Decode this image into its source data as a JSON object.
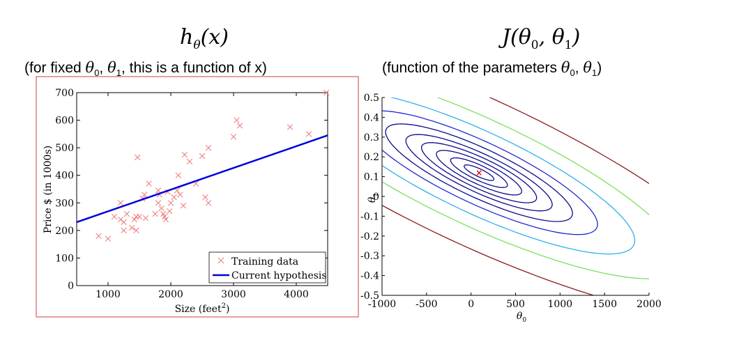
{
  "left_title": {
    "h": "h",
    "sub": "θ",
    "arg": "(x)"
  },
  "left_caption": {
    "pre": "(for fixed ",
    "math": "θ",
    "sub0": "0",
    "sep": ", ",
    "math2": "θ",
    "sub1": "1",
    "post": ", this is a function of x)"
  },
  "right_title": {
    "j": "J",
    "args": "(θ",
    "s0": "0",
    "comma": ", θ",
    "s1": "1",
    "close": ")"
  },
  "right_caption": {
    "pre": "(function of the parameters ",
    "math": "θ",
    "sub0": "0",
    "sep": ", ",
    "math2": "θ",
    "sub1": "1",
    "post": ")"
  },
  "colors": {
    "frame": "#d95f5f",
    "markers": "#f08080",
    "hypothesis": "#0000dd",
    "star": "#ff0000"
  },
  "chart_data": [
    {
      "type": "scatter",
      "xlabel": "Size (feet",
      "xlabel_sup": "2",
      "xlabel_close": ")",
      "ylabel": "Price $ (in 1000s)",
      "xlim": [
        500,
        4500
      ],
      "ylim": [
        0,
        700
      ],
      "xticks": [
        "1000",
        "2000",
        "3000",
        "4000"
      ],
      "xtick_values": [
        1000,
        2000,
        3000,
        4000
      ],
      "yticks": [
        "0",
        "100",
        "200",
        "300",
        "400",
        "500",
        "600",
        "700"
      ],
      "ytick_values": [
        0,
        100,
        200,
        300,
        400,
        500,
        600,
        700
      ],
      "series": [
        {
          "name": "Training data",
          "marker": "x",
          "points": [
            [
              850,
              180
            ],
            [
              1000,
              170
            ],
            [
              1100,
              250
            ],
            [
              1200,
              240
            ],
            [
              1200,
              300
            ],
            [
              1250,
              230
            ],
            [
              1250,
              200
            ],
            [
              1300,
              260
            ],
            [
              1380,
              210
            ],
            [
              1420,
              240
            ],
            [
              1450,
              200
            ],
            [
              1450,
              250
            ],
            [
              1470,
              465
            ],
            [
              1500,
              250
            ],
            [
              1550,
              315
            ],
            [
              1580,
              330
            ],
            [
              1600,
              245
            ],
            [
              1650,
              370
            ],
            [
              1750,
              260
            ],
            [
              1800,
              300
            ],
            [
              1800,
              345
            ],
            [
              1820,
              330
            ],
            [
              1850,
              280
            ],
            [
              1880,
              260
            ],
            [
              1900,
              250
            ],
            [
              1920,
              240
            ],
            [
              1950,
              340
            ],
            [
              1980,
              270
            ],
            [
              2000,
              300
            ],
            [
              2050,
              320
            ],
            [
              2100,
              345
            ],
            [
              2120,
              400
            ],
            [
              2150,
              330
            ],
            [
              2200,
              290
            ],
            [
              2220,
              475
            ],
            [
              2300,
              450
            ],
            [
              2400,
              370
            ],
            [
              2500,
              470
            ],
            [
              2550,
              320
            ],
            [
              2600,
              500
            ],
            [
              2600,
              300
            ],
            [
              3000,
              540
            ],
            [
              3050,
              600
            ],
            [
              3100,
              580
            ],
            [
              3900,
              575
            ],
            [
              4200,
              550
            ],
            [
              4480,
              700
            ]
          ]
        },
        {
          "name": "Current hypothesis",
          "type": "line",
          "x": [
            500,
            4500
          ],
          "y": [
            230,
            545
          ]
        }
      ],
      "legend": "bottom-right"
    },
    {
      "type": "contour",
      "xlabel": "θ",
      "xlabel_sub": "0",
      "ylabel": "θ",
      "ylabel_sub": "1",
      "xlim": [
        -1000,
        2000
      ],
      "ylim": [
        -0.5,
        0.5
      ],
      "xticks": [
        "-1000",
        "-500",
        "0",
        "500",
        "1000",
        "1500",
        "2000"
      ],
      "xtick_values": [
        -1000,
        -500,
        0,
        500,
        1000,
        1500,
        2000
      ],
      "yticks": [
        "-0.5",
        "-0.4",
        "-0.3",
        "-0.2",
        "-0.1",
        "0",
        "0.1",
        "0.2",
        "0.3",
        "0.4",
        "0.5"
      ],
      "ytick_values": [
        -0.5,
        -0.4,
        -0.3,
        -0.2,
        -0.1,
        0,
        0.1,
        0.2,
        0.3,
        0.4,
        0.5
      ],
      "center": [
        90,
        0.12
      ],
      "marker": "×",
      "levels": [
        {
          "a": 0.22,
          "color": "#0a0a8c"
        },
        {
          "a": 0.42,
          "color": "#0a0a8c"
        },
        {
          "a": 0.63,
          "color": "#0a0a8c"
        },
        {
          "a": 0.85,
          "color": "#0a0a8c"
        },
        {
          "a": 1.08,
          "color": "#0a0a8c"
        },
        {
          "a": 1.38,
          "color": "#0a0a8c"
        },
        {
          "a": 1.75,
          "color": "#1a2bd0"
        },
        {
          "a": 2.3,
          "color": "#2fb0ea"
        },
        {
          "a": 3.0,
          "color": "#7be05c"
        },
        {
          "a": 4.1,
          "color": "#8b1a1a"
        }
      ]
    }
  ]
}
